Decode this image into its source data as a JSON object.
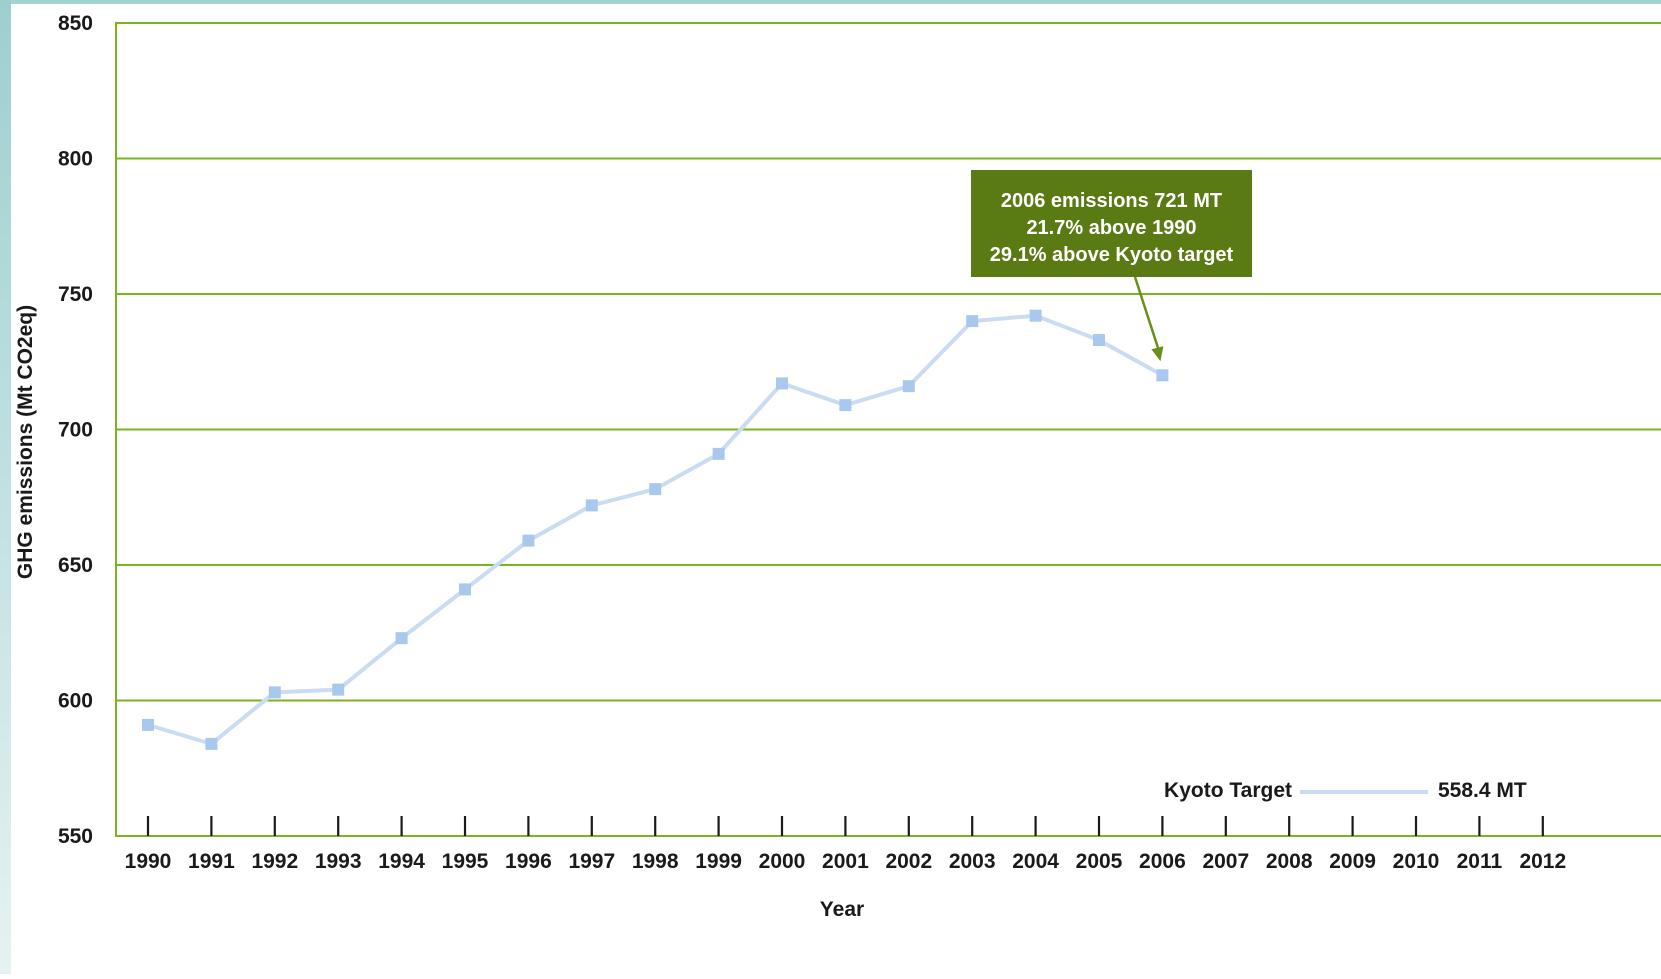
{
  "chart_data": {
    "type": "line",
    "title": "",
    "xlabel": "Year",
    "ylabel": "GHG emissions (Mt CO2eq)",
    "ylim": [
      550,
      850
    ],
    "yticks": [
      "550",
      "600",
      "650",
      "700",
      "750",
      "800",
      "850"
    ],
    "categories": [
      "1990",
      "1991",
      "1992",
      "1993",
      "1994",
      "1995",
      "1996",
      "1997",
      "1998",
      "1999",
      "2000",
      "2001",
      "2002",
      "2003",
      "2004",
      "2005",
      "2006",
      "2007",
      "2008",
      "2009",
      "2010",
      "2011",
      "2012"
    ],
    "series": [
      {
        "values": [
          591,
          584,
          603,
          604,
          623,
          641,
          659,
          672,
          678,
          691,
          717,
          709,
          716,
          740,
          742,
          733,
          720,
          null,
          null,
          null,
          null,
          null,
          null
        ]
      }
    ],
    "grid": true,
    "annotation": {
      "lines": [
        "2006 emissions 721 MT",
        "21.7% above 1990",
        "29.1% above Kyoto target"
      ],
      "points_to": "2006"
    },
    "reference_line": {
      "label": "Kyoto Target",
      "value_label": "558.4 MT",
      "value": 558.4
    }
  },
  "colors": {
    "grid": "#7ab51d",
    "axis": "#7ab51d",
    "series_line": "#c9dcf2",
    "series_marker": "#a9c8ee",
    "callout_bg": "#5a7a14",
    "left_gradient_top": "#9dcfcf",
    "left_gradient_bottom": "#e6f2f2",
    "top_band": "#a3d3d1"
  }
}
